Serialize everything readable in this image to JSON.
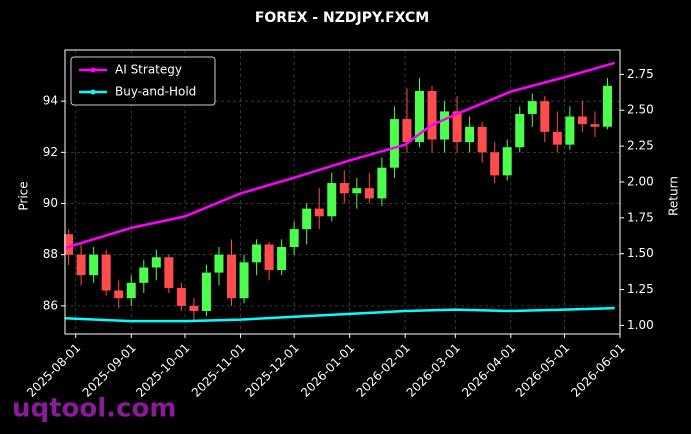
{
  "chart_data": {
    "type": "candlestick",
    "title": "FOREX - NZDJPY.FXCM",
    "y_label": "Price",
    "y2_label": "Return",
    "watermark": "uqtool.com",
    "x": [
      "2025-07-28",
      "2025-08-04",
      "2025-08-11",
      "2025-08-18",
      "2025-08-25",
      "2025-09-01",
      "2025-09-08",
      "2025-09-15",
      "2025-09-22",
      "2025-09-29",
      "2025-10-06",
      "2025-10-13",
      "2025-10-20",
      "2025-10-27",
      "2025-11-03",
      "2025-11-10",
      "2025-11-17",
      "2025-11-24",
      "2025-12-01",
      "2025-12-08",
      "2025-12-15",
      "2025-12-22",
      "2025-12-29",
      "2026-01-05",
      "2026-01-12",
      "2026-01-19",
      "2026-01-26",
      "2026-02-02",
      "2026-02-09",
      "2026-02-16",
      "2026-02-23",
      "2026-03-02",
      "2026-03-09",
      "2026-03-16",
      "2026-03-23",
      "2026-03-30",
      "2026-04-06",
      "2026-04-13",
      "2026-04-20",
      "2026-04-27",
      "2026-05-04",
      "2026-05-11",
      "2026-05-18",
      "2026-05-25"
    ],
    "open": [
      88.8,
      88.0,
      87.2,
      88.0,
      86.6,
      86.3,
      86.9,
      87.5,
      87.9,
      86.7,
      86.0,
      85.8,
      87.3,
      88.0,
      86.3,
      87.7,
      88.4,
      87.4,
      88.3,
      89.0,
      89.8,
      89.5,
      90.8,
      90.4,
      90.6,
      90.2,
      91.4,
      93.3,
      92.4,
      94.4,
      92.5,
      93.6,
      92.4,
      93.0,
      92.0,
      91.1,
      92.2,
      93.5,
      94.0,
      92.8,
      92.3,
      93.4,
      93.1,
      93.0
    ],
    "high": [
      89.0,
      88.4,
      88.3,
      88.2,
      87.0,
      87.2,
      87.8,
      88.2,
      88.0,
      86.9,
      86.3,
      87.6,
      88.3,
      88.6,
      88.0,
      88.6,
      88.5,
      88.6,
      89.3,
      90.0,
      90.6,
      91.2,
      91.3,
      91.0,
      91.2,
      91.8,
      93.8,
      94.5,
      94.9,
      94.6,
      94.0,
      94.2,
      93.4,
      93.2,
      92.4,
      92.5,
      93.8,
      94.3,
      94.2,
      93.6,
      93.8,
      94.0,
      93.6,
      94.9
    ],
    "low": [
      87.6,
      86.8,
      86.9,
      86.4,
      85.9,
      86.0,
      86.5,
      87.0,
      86.5,
      85.8,
      85.4,
      85.6,
      86.8,
      86.0,
      86.1,
      87.2,
      87.0,
      87.2,
      88.0,
      88.4,
      89.0,
      89.3,
      90.0,
      89.8,
      90.0,
      89.9,
      91.0,
      92.0,
      92.2,
      92.0,
      92.0,
      92.0,
      92.0,
      91.6,
      90.8,
      90.9,
      92.0,
      93.0,
      92.4,
      92.0,
      92.1,
      92.8,
      92.6,
      92.9
    ],
    "close": [
      88.0,
      87.2,
      88.0,
      86.6,
      86.3,
      86.9,
      87.5,
      87.9,
      86.7,
      86.0,
      85.8,
      87.3,
      88.0,
      86.3,
      87.7,
      88.4,
      87.4,
      88.3,
      89.0,
      89.8,
      89.5,
      90.8,
      90.4,
      90.6,
      90.2,
      91.4,
      93.3,
      92.4,
      94.4,
      92.5,
      93.6,
      92.4,
      93.0,
      92.0,
      91.1,
      92.2,
      93.5,
      94.0,
      92.8,
      92.3,
      93.4,
      93.1,
      93.0,
      94.6
    ],
    "up_color": "#4cff4c",
    "down_color": "#ff4c4c",
    "series": [
      {
        "name": "AI Strategy",
        "color": "#ff00ff",
        "axis": "y2",
        "x": [
          "2025-07-26",
          "2025-09-01",
          "2025-10-01",
          "2025-11-01",
          "2025-12-01",
          "2026-01-01",
          "2026-02-01",
          "2026-02-15",
          "2026-03-01",
          "2026-04-01",
          "2026-05-01",
          "2026-05-29"
        ],
        "values": [
          1.54,
          1.68,
          1.76,
          1.92,
          2.03,
          2.15,
          2.26,
          2.39,
          2.47,
          2.63,
          2.73,
          2.83
        ]
      },
      {
        "name": "Buy-and-Hold",
        "color": "#00ffff",
        "axis": "y2",
        "x": [
          "2025-07-26",
          "2025-09-01",
          "2025-10-01",
          "2025-11-01",
          "2025-12-01",
          "2026-01-01",
          "2026-02-01",
          "2026-03-01",
          "2026-04-01",
          "2026-05-01",
          "2026-05-29"
        ],
        "values": [
          1.05,
          1.03,
          1.03,
          1.04,
          1.06,
          1.08,
          1.1,
          1.11,
          1.1,
          1.11,
          1.12
        ]
      }
    ],
    "xlim": [
      "2025-07-26",
      "2026-06-01"
    ],
    "xticks": [
      "2025-08-01",
      "2025-09-01",
      "2025-10-01",
      "2025-11-01",
      "2025-12-01",
      "2026-01-01",
      "2026-02-01",
      "2026-03-01",
      "2026-04-01",
      "2026-05-01",
      "2026-06-01"
    ],
    "ylim": [
      84.9,
      96.0
    ],
    "yticks": [
      86,
      88,
      90,
      92,
      94
    ],
    "y2lim": [
      0.94,
      2.92
    ],
    "y2ticks": [
      {
        "value": 1,
        "label": "1.00"
      },
      {
        "value": 1.25,
        "label": "1.25"
      },
      {
        "value": 1.5,
        "label": "1.50"
      },
      {
        "value": 1.75,
        "label": "1.75"
      },
      {
        "value": 2,
        "label": "2.00"
      },
      {
        "value": 2.25,
        "label": "2.25"
      },
      {
        "value": 2.5,
        "label": "2.50"
      },
      {
        "value": 2.75,
        "label": "2.75"
      }
    ],
    "grid": true,
    "legend": "upper-left"
  }
}
